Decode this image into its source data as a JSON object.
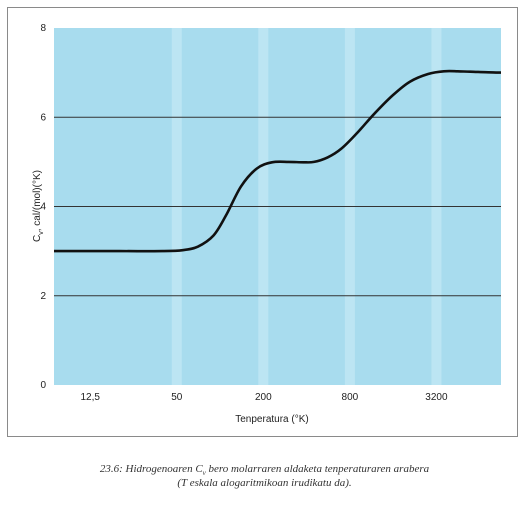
{
  "chart_data": {
    "type": "line",
    "xlabel": "Tenperatura (°K)",
    "ylabel_main": "C",
    "ylabel_sub": "v",
    "ylabel_rest": ", cal/(mol)(°K)",
    "x_scale": "log",
    "x_ticks": [
      "12,5",
      "50",
      "200",
      "800",
      "3200"
    ],
    "x_tick_values": [
      12.5,
      50,
      200,
      800,
      3200
    ],
    "xlim": [
      7,
      9000
    ],
    "y_ticks": [
      "0",
      "2",
      "4",
      "6",
      "8"
    ],
    "ylim": [
      0,
      8
    ],
    "grid": "horizontal",
    "colors": {
      "plot_bg": "#a8dcee",
      "stripe": "#c4e8f5",
      "line": "#111111",
      "grid": "#333333"
    },
    "series": [
      {
        "x": [
          7,
          20,
          40,
          55,
          70,
          90,
          110,
          140,
          180,
          230,
          300,
          380,
          450,
          560,
          700,
          900,
          1200,
          1600,
          2100,
          2800,
          3600,
          4500,
          5500,
          7000,
          9000
        ],
        "values": [
          3.0,
          3.0,
          3.0,
          3.02,
          3.1,
          3.35,
          3.8,
          4.45,
          4.85,
          4.99,
          5.0,
          4.99,
          5.0,
          5.1,
          5.3,
          5.65,
          6.1,
          6.5,
          6.8,
          6.97,
          7.03,
          7.03,
          7.02,
          7.01,
          7.0
        ]
      }
    ]
  },
  "caption": {
    "line1_pre": "23.6: Hidrogenoaren C",
    "line1_sub": "v",
    "line1_post": " bero molarraren aldaketa tenperaturaren arabera",
    "line2": "(T eskala alogaritmikoan irudikatu da)."
  }
}
